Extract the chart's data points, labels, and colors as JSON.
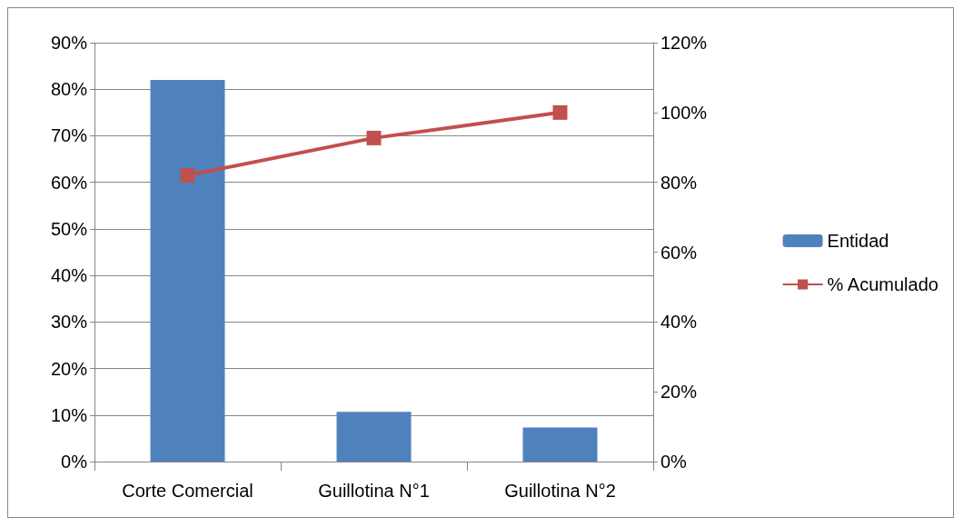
{
  "chart_data": {
    "type": "bar",
    "categories": [
      "Corte Comercial",
      "Guillotina N°1",
      "Guillotina N°2"
    ],
    "series": [
      {
        "name": "Entidad",
        "color": "#4f81bd",
        "values": [
          82,
          10.7,
          7.3
        ]
      },
      {
        "name": "% Acumulado",
        "type": "line",
        "axis": "y2",
        "color": "#c0504d",
        "values": [
          82,
          92.7,
          100
        ],
        "marker": "square"
      }
    ],
    "ylim": [
      0,
      90
    ],
    "yticks": [
      {
        "value": 0,
        "label": "0%"
      },
      {
        "value": 10,
        "label": "10%"
      },
      {
        "value": 20,
        "label": "20%"
      },
      {
        "value": 30,
        "label": "30%"
      },
      {
        "value": 40,
        "label": "40%"
      },
      {
        "value": 50,
        "label": "50%"
      },
      {
        "value": 60,
        "label": "60%"
      },
      {
        "value": 70,
        "label": "70%"
      },
      {
        "value": 80,
        "label": "80%"
      },
      {
        "value": 90,
        "label": "90%"
      }
    ],
    "y2lim": [
      0,
      120
    ],
    "y2ticks": [
      {
        "value": 0,
        "label": "0%"
      },
      {
        "value": 20,
        "label": "20%"
      },
      {
        "value": 40,
        "label": "40%"
      },
      {
        "value": 60,
        "label": "60%"
      },
      {
        "value": 80,
        "label": "80%"
      },
      {
        "value": 100,
        "label": "100%"
      },
      {
        "value": 120,
        "label": "120%"
      }
    ],
    "grid": "y",
    "legend": "right"
  }
}
